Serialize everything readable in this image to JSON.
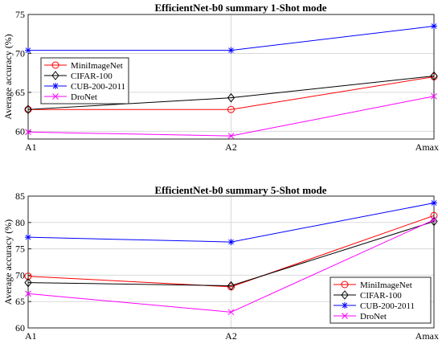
{
  "chart_data": [
    {
      "type": "line",
      "title": "EfficientNet-b0 summary 1-Shot mode",
      "ylabel": "Average accuracy (%)",
      "xlabel": "",
      "categories": [
        "A1",
        "A2",
        "Amax"
      ],
      "ylim": [
        59,
        75
      ],
      "yticks": [
        60,
        65,
        70,
        75
      ],
      "grid": true,
      "legend_position": "middle-left",
      "series": [
        {
          "name": "MiniImageNet",
          "color": "#ff0000",
          "marker": "circle",
          "values": [
            62.8,
            62.8,
            67.0
          ]
        },
        {
          "name": "CIFAR-100",
          "color": "#000000",
          "marker": "diamond",
          "values": [
            62.8,
            64.3,
            67.1
          ]
        },
        {
          "name": "CUB-200-2011",
          "color": "#0000ff",
          "marker": "asterisk",
          "values": [
            70.4,
            70.4,
            73.5
          ]
        },
        {
          "name": "DroNet",
          "color": "#ff00ff",
          "marker": "x",
          "values": [
            59.9,
            59.4,
            64.5
          ]
        }
      ]
    },
    {
      "type": "line",
      "title": "EfficientNet-b0 summary 5-Shot mode",
      "ylabel": "Average accuracy (%)",
      "xlabel": "",
      "categories": [
        "A1",
        "A2",
        "Amax"
      ],
      "ylim": [
        60,
        85
      ],
      "yticks": [
        60,
        65,
        70,
        75,
        80,
        85
      ],
      "grid": true,
      "legend_position": "bottom-right",
      "series": [
        {
          "name": "MiniImageNet",
          "color": "#ff0000",
          "marker": "circle",
          "values": [
            69.8,
            67.8,
            81.3
          ]
        },
        {
          "name": "CIFAR-100",
          "color": "#000000",
          "marker": "diamond",
          "values": [
            68.6,
            68.0,
            80.2
          ]
        },
        {
          "name": "CUB-200-2011",
          "color": "#0000ff",
          "marker": "asterisk",
          "values": [
            77.2,
            76.3,
            83.7
          ]
        },
        {
          "name": "DroNet",
          "color": "#ff00ff",
          "marker": "x",
          "values": [
            66.5,
            63.0,
            80.5
          ]
        }
      ]
    }
  ]
}
